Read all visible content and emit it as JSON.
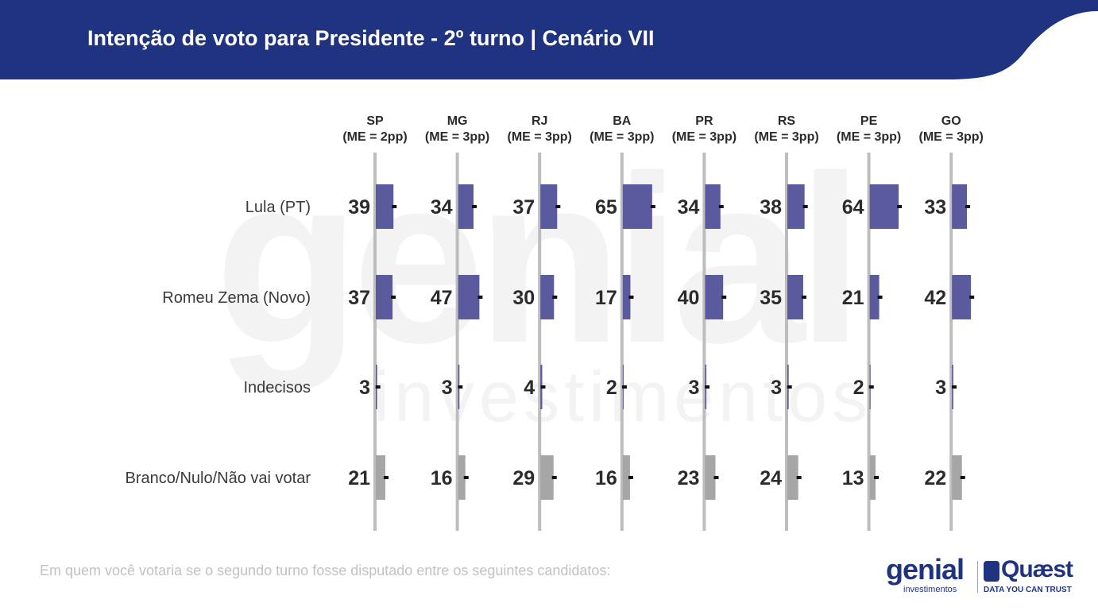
{
  "header": {
    "title": "Intenção de voto para Presidente - 2º turno | Cenário VII",
    "color": "#1f3380"
  },
  "footnote": "Em quem você votaria se o segundo turno fosse disputado entre os seguintes candidatos:",
  "logos": {
    "genial_word": "genial",
    "genial_sub": "investimentos",
    "quaest_word": "Quæst",
    "quaest_sub": "DATA YOU CAN TRUST"
  },
  "watermark": {
    "word": "genial",
    "sub": "investimentos"
  },
  "chart_data": {
    "type": "bar",
    "orientation": "horizontal",
    "layout": "small-multiples",
    "categories": [
      "Lula (PT)",
      "Romeu Zema (Novo)",
      "Indecisos",
      "Branco/Nulo/Não vai votar"
    ],
    "row_colors": [
      "#5c5a9e",
      "#5c5a9e",
      "#5c5a9e",
      "#a6a6a6"
    ],
    "panels": [
      {
        "state": "SP",
        "margin": "(ME = 2pp)",
        "values": [
          39,
          37,
          3,
          21
        ]
      },
      {
        "state": "MG",
        "margin": "(ME = 3pp)",
        "values": [
          34,
          47,
          3,
          16
        ]
      },
      {
        "state": "RJ",
        "margin": "(ME = 3pp)",
        "values": [
          37,
          30,
          4,
          29
        ]
      },
      {
        "state": "BA",
        "margin": "(ME = 3pp)",
        "values": [
          65,
          17,
          2,
          16
        ]
      },
      {
        "state": "PR",
        "margin": "(ME = 3pp)",
        "values": [
          34,
          40,
          3,
          23
        ]
      },
      {
        "state": "RS",
        "margin": "(ME = 3pp)",
        "values": [
          38,
          35,
          3,
          24
        ]
      },
      {
        "state": "PE",
        "margin": "(ME = 3pp)",
        "values": [
          64,
          21,
          2,
          13
        ]
      },
      {
        "state": "GO",
        "margin": "(ME = 3pp)",
        "values": [
          33,
          42,
          3,
          22
        ]
      }
    ],
    "axis_line_color": "#bdbdbd",
    "error_marker": true
  }
}
